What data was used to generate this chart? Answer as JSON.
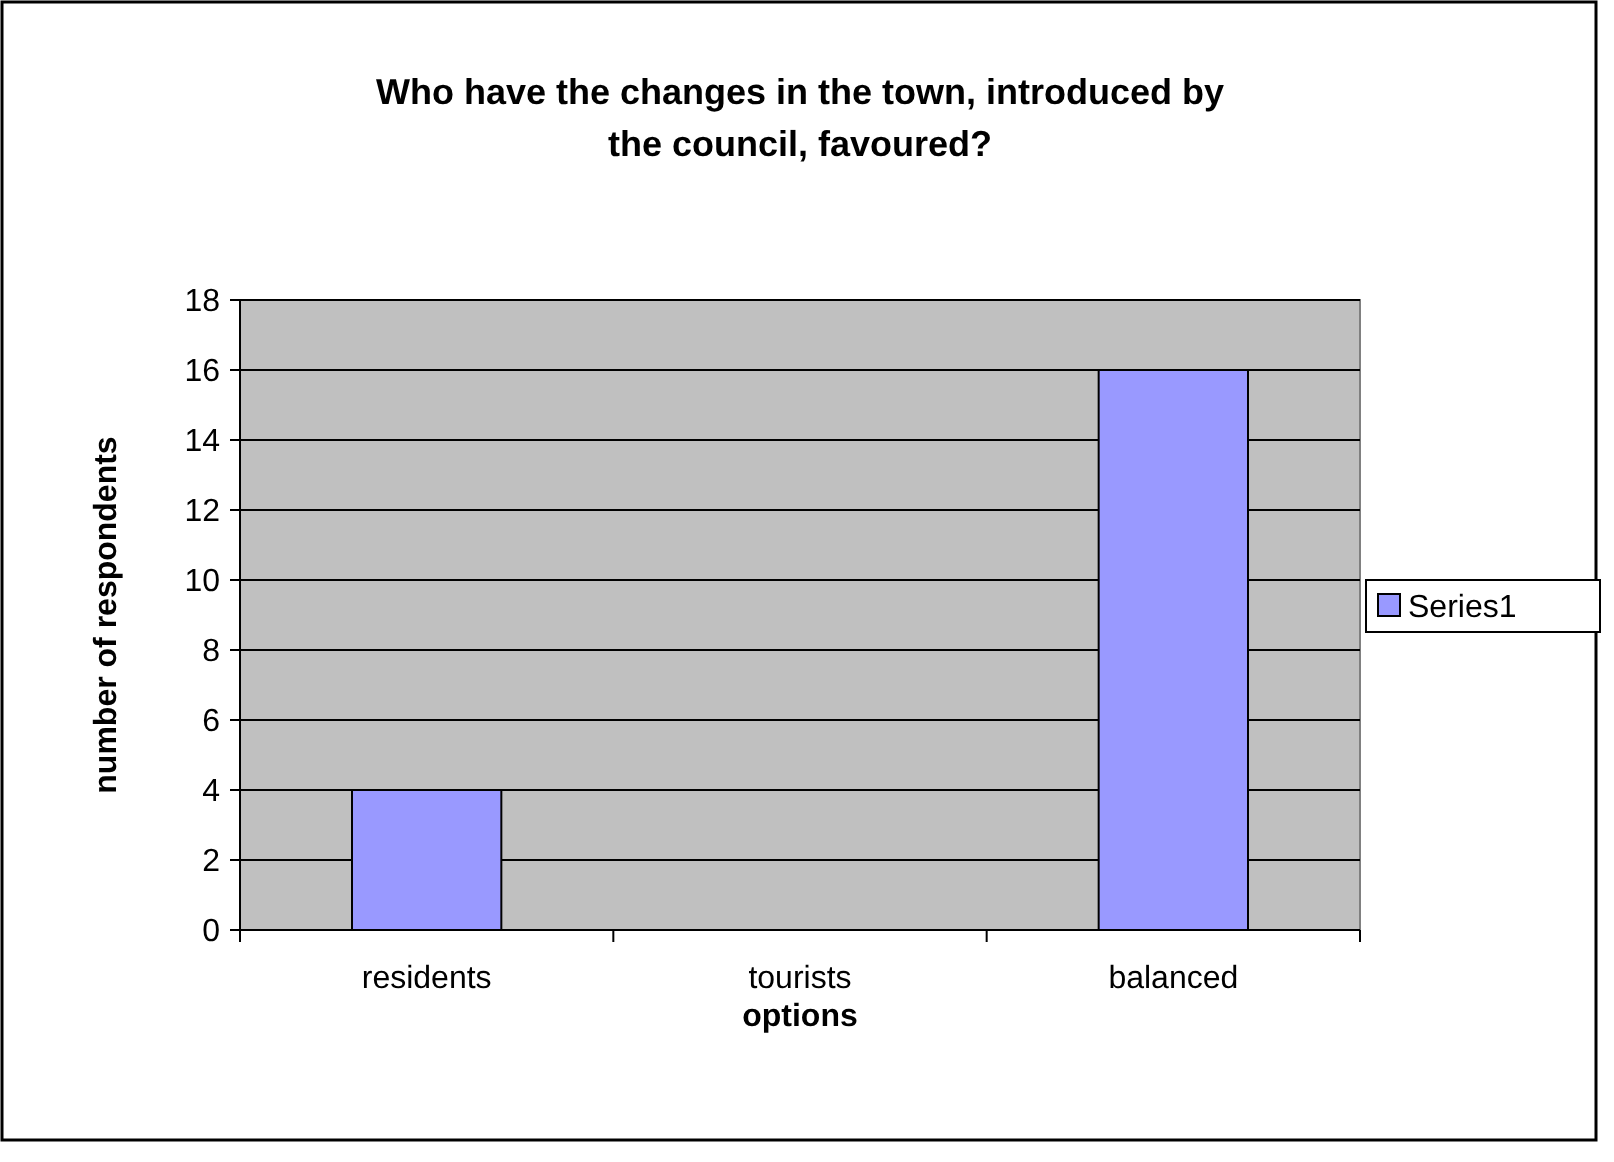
{
  "chart_data": {
    "type": "bar",
    "title": "Who have the changes in the town, introduced by the council, favoured?",
    "xlabel": "options",
    "ylabel": "number of respondents",
    "categories": [
      "residents",
      "tourists",
      "balanced"
    ],
    "series": [
      {
        "name": "Series1",
        "color": "#9999ff",
        "values": [
          4,
          0,
          16
        ]
      }
    ],
    "ylim": [
      0,
      18
    ],
    "yticks": [
      0,
      2,
      4,
      6,
      8,
      10,
      12,
      14,
      16,
      18
    ],
    "grid": "y",
    "legend": "right"
  }
}
